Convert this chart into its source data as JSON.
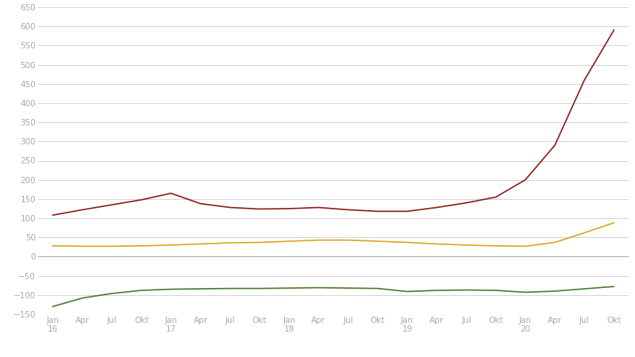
{
  "background_color": "#ffffff",
  "grid_color": "#cccccc",
  "ylim": [
    -150,
    650
  ],
  "yticks": [
    -150,
    -100,
    -50,
    0,
    50,
    100,
    150,
    200,
    250,
    300,
    350,
    400,
    450,
    500,
    550,
    600,
    650
  ],
  "x_labels": [
    "Jan\n16",
    "Apr",
    "Jul",
    "Okt",
    "Jan\n17",
    "Apr",
    "Jul",
    "Okt",
    "Jan\n18",
    "Apr",
    "Jul",
    "Okt",
    "Jan\n19",
    "Apr",
    "Jul",
    "Okt",
    "Jan\n20",
    "Apr",
    "Jul",
    "Okt"
  ],
  "dark_red_values": [
    108,
    122,
    135,
    148,
    165,
    138,
    128,
    124,
    125,
    128,
    122,
    118,
    118,
    128,
    140,
    155,
    200,
    290,
    460,
    590
  ],
  "orange_values": [
    28,
    27,
    27,
    28,
    30,
    33,
    36,
    37,
    40,
    43,
    43,
    40,
    37,
    33,
    30,
    28,
    27,
    37,
    62,
    88
  ],
  "green_values": [
    -130,
    -108,
    -96,
    -88,
    -85,
    -84,
    -83,
    -83,
    -82,
    -81,
    -82,
    -83,
    -91,
    -88,
    -87,
    -88,
    -93,
    -90,
    -84,
    -78
  ],
  "dark_red_color": "#8B1A1A",
  "orange_color": "#DAA520",
  "green_color": "#4A7A2A",
  "line_width": 1.2,
  "zero_line_color": "#aaaaaa",
  "tick_color": "#aaaaaa",
  "tick_fontsize": 7.5
}
